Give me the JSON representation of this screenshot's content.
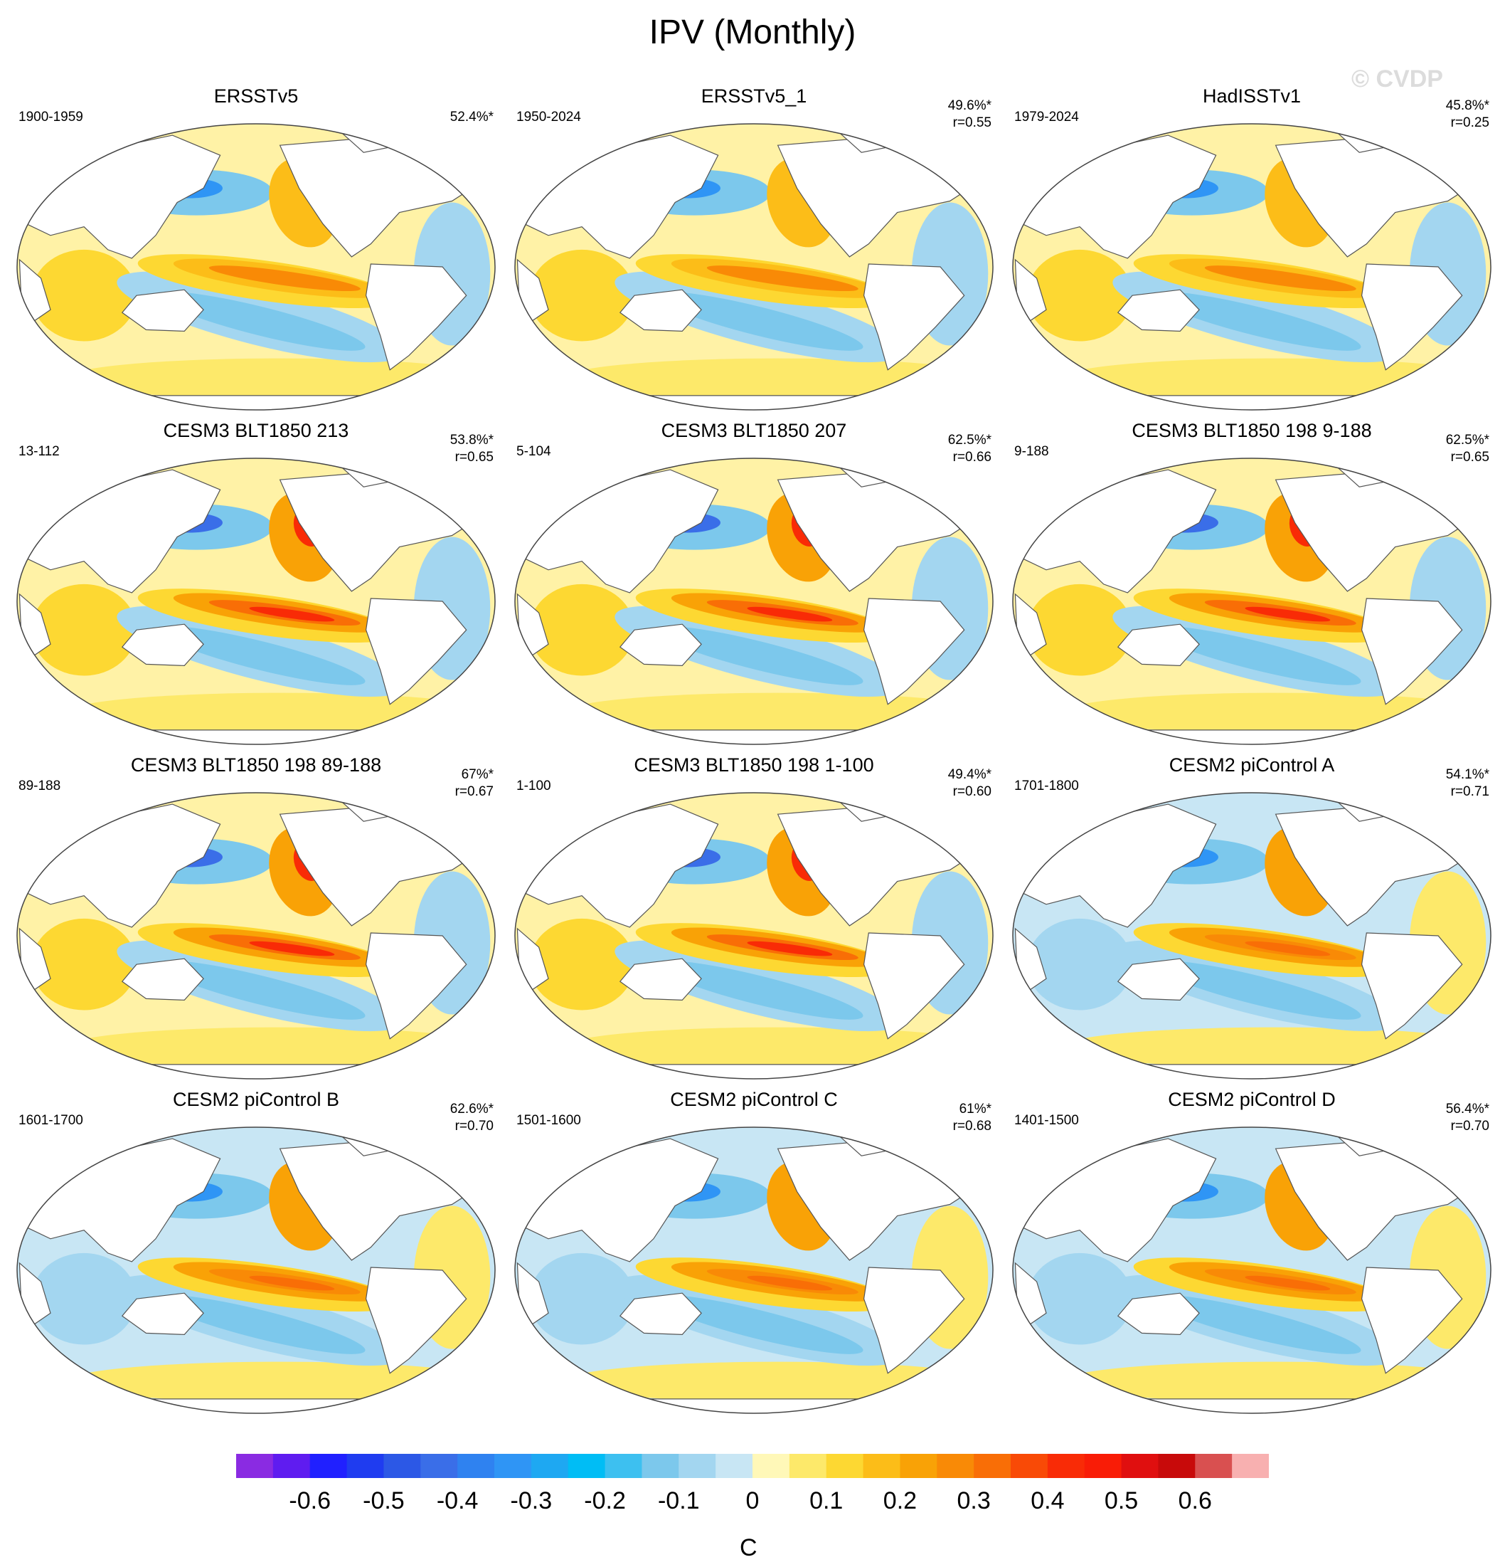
{
  "title": "IPV (Monthly)",
  "watermark": "© CVDP",
  "panels": [
    {
      "title": "ERSSTv5",
      "period": "1900-1959",
      "pct": "52.4%*",
      "r": ""
    },
    {
      "title": "ERSSTv5_1",
      "period": "1950-2024",
      "pct": "49.6%*",
      "r": "r=0.55"
    },
    {
      "title": "HadISSTv1",
      "period": "1979-2024",
      "pct": "45.8%*",
      "r": "r=0.25"
    },
    {
      "title": "CESM3 BLT1850 213",
      "period": "13-112",
      "pct": "53.8%*",
      "r": "r=0.65"
    },
    {
      "title": "CESM3 BLT1850 207",
      "period": "5-104",
      "pct": "62.5%*",
      "r": "r=0.66"
    },
    {
      "title": "CESM3 BLT1850 198 9-188",
      "period": "9-188",
      "pct": "62.5%*",
      "r": "r=0.65"
    },
    {
      "title": "CESM3 BLT1850 198 89-188",
      "period": "89-188",
      "pct": "67%*",
      "r": "r=0.67"
    },
    {
      "title": "CESM3 BLT1850 198 1-100",
      "period": "1-100",
      "pct": "49.4%*",
      "r": "r=0.60"
    },
    {
      "title": "CESM2 piControl A",
      "period": "1701-1800",
      "pct": "54.1%*",
      "r": "r=0.71"
    },
    {
      "title": "CESM2 piControl B",
      "period": "1601-1700",
      "pct": "62.6%*",
      "r": "r=0.70"
    },
    {
      "title": "CESM2 piControl C",
      "period": "1501-1600",
      "pct": "61%*",
      "r": "r=0.68"
    },
    {
      "title": "CESM2 piControl D",
      "period": "1401-1500",
      "pct": "56.4%*",
      "r": "r=0.70"
    }
  ],
  "colorbar": {
    "unit": "C",
    "tick_labels": [
      "-0.6",
      "-0.5",
      "-0.4",
      "-0.3",
      "-0.2",
      "-0.1",
      "0",
      "0.1",
      "0.2",
      "0.3",
      "0.4",
      "0.5",
      "0.6"
    ],
    "tick_values": [
      -0.6,
      -0.5,
      -0.4,
      -0.3,
      -0.2,
      -0.1,
      0,
      0.1,
      0.2,
      0.3,
      0.4,
      0.5,
      0.6
    ],
    "levels_min": -0.7,
    "level_step": 0.05,
    "colors": [
      "#8a2be2",
      "#5f1cf0",
      "#2020ff",
      "#1f3cf0",
      "#2c58e6",
      "#3a6ee8",
      "#2f82f0",
      "#2f95f5",
      "#1ea8f2",
      "#00bdf5",
      "#3dc0f0",
      "#7cc8ec",
      "#a3d6f0",
      "#c8e6f4",
      "#fff8b8",
      "#fde96a",
      "#fdd832",
      "#fcbd18",
      "#f9a206",
      "#f98a06",
      "#f96e06",
      "#f94a06",
      "#f92b06",
      "#f91c06",
      "#e00f0f",
      "#c80a0a",
      "#d95050",
      "#f8b0b0"
    ]
  }
}
